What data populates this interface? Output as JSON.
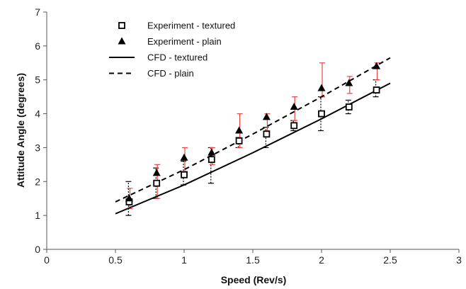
{
  "chart_data": {
    "type": "scatter",
    "xlabel": "Speed (Rev/s)",
    "ylabel": "Attitude Angle (degrees)",
    "xlim": [
      0,
      3
    ],
    "ylim": [
      0,
      7
    ],
    "xticks": [
      "0",
      "0.5",
      "1",
      "1.5",
      "2",
      "2.5",
      "3"
    ],
    "yticks": [
      "0",
      "1",
      "2",
      "3",
      "4",
      "5",
      "6",
      "7"
    ],
    "grid": false,
    "legend_position": "top-left",
    "series": [
      {
        "name": "Experiment - textured",
        "kind": "points",
        "marker": "square",
        "color": "#000000",
        "error_color": "#000000",
        "error_style": "dotted",
        "points": [
          {
            "x": 0.6,
            "y": 1.4,
            "low": 1.0,
            "high": 2.0
          },
          {
            "x": 0.8,
            "y": 1.95,
            "low": 1.5,
            "high": 2.4
          },
          {
            "x": 1.0,
            "y": 2.2,
            "low": 1.9,
            "high": 2.6
          },
          {
            "x": 1.2,
            "y": 2.65,
            "low": 1.95,
            "high": 3.0
          },
          {
            "x": 1.4,
            "y": 3.2,
            "low": 3.0,
            "high": 3.3
          },
          {
            "x": 1.6,
            "y": 3.4,
            "low": 3.0,
            "high": 3.6
          },
          {
            "x": 1.8,
            "y": 3.65,
            "low": 3.5,
            "high": 3.8
          },
          {
            "x": 2.0,
            "y": 4.0,
            "low": 3.5,
            "high": 4.5
          },
          {
            "x": 2.2,
            "y": 4.2,
            "low": 4.0,
            "high": 4.4
          },
          {
            "x": 2.4,
            "y": 4.7,
            "low": 4.5,
            "high": 5.0
          }
        ]
      },
      {
        "name": "Experiment - plain",
        "kind": "points",
        "marker": "triangle",
        "color": "#000000",
        "error_color": "#e8463e",
        "error_style": "solid",
        "points": [
          {
            "x": 0.6,
            "y": 1.5,
            "low": 1.2,
            "high": 1.8
          },
          {
            "x": 0.8,
            "y": 2.25,
            "low": 1.5,
            "high": 2.5
          },
          {
            "x": 1.0,
            "y": 2.7,
            "low": 2.3,
            "high": 3.0
          },
          {
            "x": 1.2,
            "y": 2.85,
            "low": 2.5,
            "high": 3.0
          },
          {
            "x": 1.4,
            "y": 3.5,
            "low": 3.0,
            "high": 4.0
          },
          {
            "x": 1.6,
            "y": 3.9,
            "low": 3.5,
            "high": 4.0
          },
          {
            "x": 1.8,
            "y": 4.2,
            "low": 3.8,
            "high": 4.5
          },
          {
            "x": 2.0,
            "y": 4.75,
            "low": 4.5,
            "high": 5.5
          },
          {
            "x": 2.2,
            "y": 4.9,
            "low": 4.6,
            "high": 5.1
          },
          {
            "x": 2.4,
            "y": 5.4,
            "low": 5.0,
            "high": 5.5
          }
        ]
      },
      {
        "name": "CFD - textured",
        "kind": "line",
        "dash": "solid",
        "color": "#000000",
        "x": [
          0.5,
          1.0,
          1.5,
          2.0,
          2.5
        ],
        "y": [
          1.05,
          1.9,
          2.85,
          3.85,
          4.9
        ]
      },
      {
        "name": "CFD - plain",
        "kind": "line",
        "dash": "dashed",
        "color": "#000000",
        "x": [
          0.5,
          1.0,
          1.5,
          2.0,
          2.5
        ],
        "y": [
          1.4,
          2.35,
          3.4,
          4.5,
          5.65
        ]
      }
    ]
  }
}
